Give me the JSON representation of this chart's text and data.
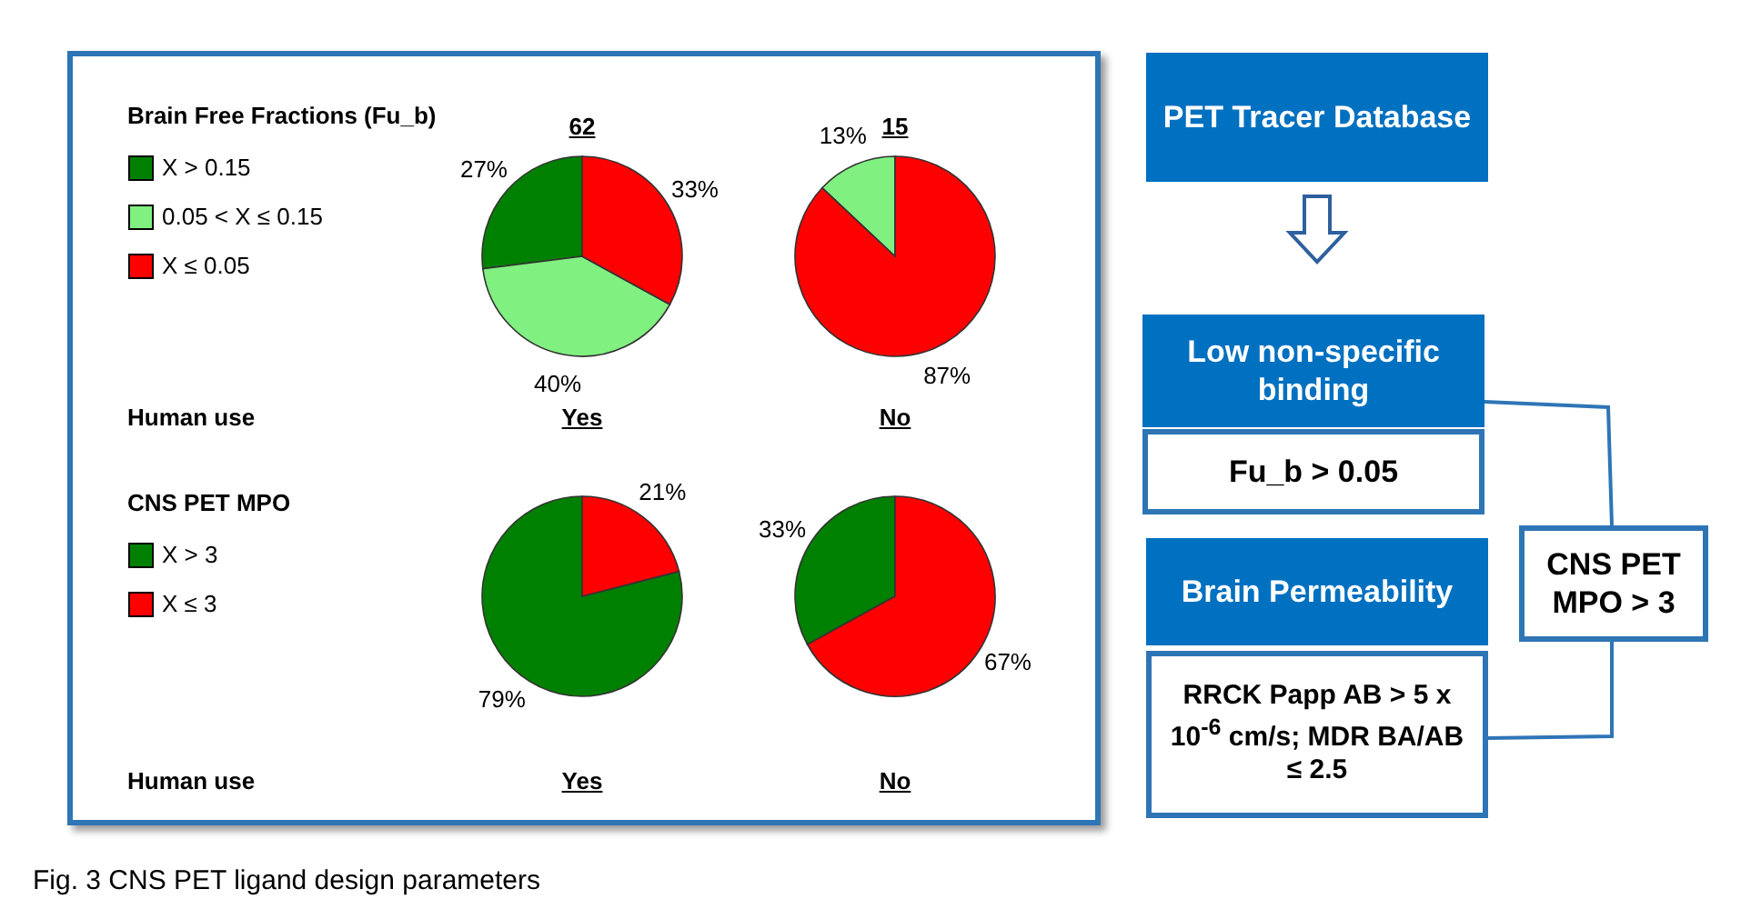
{
  "chart_data": [
    {
      "type": "pie",
      "title": "62",
      "xlabel": "Yes",
      "legend_title": "Brain Free Fractions (Fu_b)",
      "legend": "left",
      "annotations": [
        "Human use"
      ],
      "categories": [
        "X > 0.15",
        "0.05 < X ≤ 0.15",
        "X ≤ 0.05"
      ],
      "values": [
        27,
        40,
        33
      ],
      "colors": [
        "#008000",
        "#80f080",
        "#ff0000"
      ],
      "value_labels": [
        "27%",
        "40%",
        "33%"
      ]
    },
    {
      "type": "pie",
      "title": "15",
      "xlabel": "No",
      "categories": [
        null,
        null
      ],
      "values": [
        13,
        87
      ],
      "colors": [
        "#80f080",
        "#ff0000"
      ],
      "value_labels": [
        "13%",
        "87%"
      ]
    },
    {
      "type": "pie",
      "xlabel": "Yes",
      "legend_title": "CNS PET MPO",
      "legend": "left",
      "annotations": [
        "Human use"
      ],
      "categories": [
        "X > 3",
        "X ≤ 3"
      ],
      "values": [
        79,
        21
      ],
      "colors": [
        "#008000",
        "#ff0000"
      ],
      "value_labels": [
        "79%",
        "21%"
      ]
    },
    {
      "type": "pie",
      "xlabel": "No",
      "categories": [
        null,
        null
      ],
      "values": [
        33,
        67
      ],
      "colors": [
        "#008000",
        "#ff0000"
      ],
      "value_labels": [
        "33%",
        "67%"
      ]
    },
    {
      "type": "other",
      "annotations": [
        "PET Tracer Database",
        "Low non-specific binding",
        "Fu_b > 0.05",
        "Brain Permeability",
        "RRCK Papp AB > 5 x 10$^{-6}$ cm/s; MDR BA/AB ≤ 2.5",
        "CNS PET MPO > 3",
        "Fig. 3 CNS PET ligand design parameters"
      ]
    }
  ]
}
